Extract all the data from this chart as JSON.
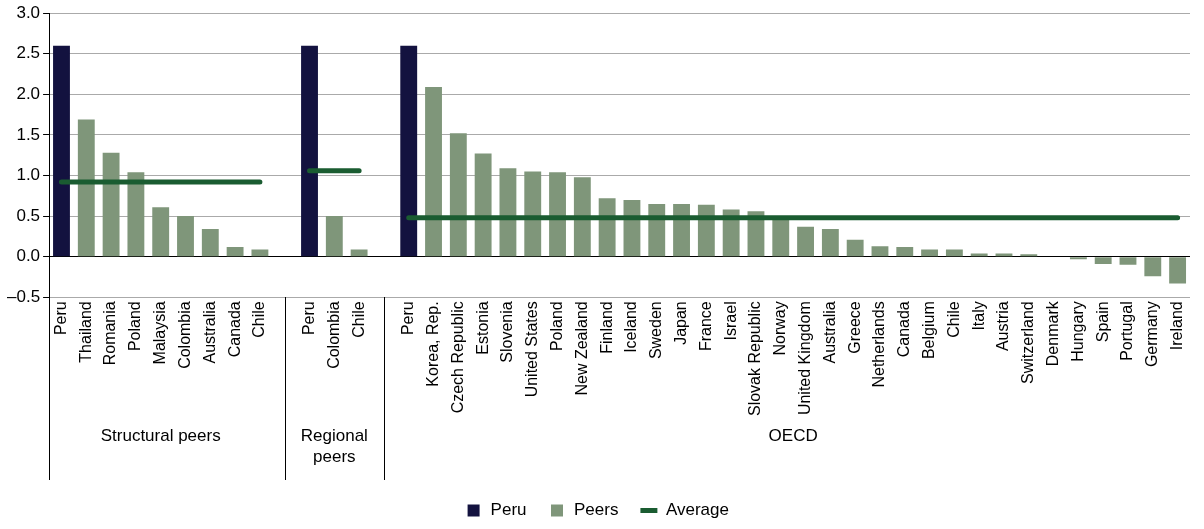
{
  "chart_data": {
    "type": "bar",
    "categories": [
      "Peru",
      "Thailand",
      "Romania",
      "Poland",
      "Malaysia",
      "Colombia",
      "Australia",
      "Canada",
      "Chile",
      null,
      "Peru",
      "Colombia",
      "Chile",
      null,
      "Peru",
      "Korea, Rep.",
      "Czech Republic",
      "Estonia",
      "Slovenia",
      "United States",
      "Poland",
      "New Zealand",
      "Finland",
      "Iceland",
      "Sweden",
      "Japan",
      "France",
      "Israel",
      "Slovak Republic",
      "Norway",
      "United Kingdom",
      "Australia",
      "Greece",
      "Netherlands",
      "Canada",
      "Belgium",
      "Chile",
      "Italy",
      "Austria",
      "Switzerland",
      "Denmark",
      "Hungary",
      "Spain",
      "Portugal",
      "Germany",
      "Ireland"
    ],
    "series": [
      {
        "name": "Peru",
        "color": "#13123f",
        "values": [
          2.6,
          null,
          null,
          null,
          null,
          null,
          null,
          null,
          null,
          null,
          2.6,
          null,
          null,
          null,
          2.6,
          null,
          null,
          null,
          null,
          null,
          null,
          null,
          null,
          null,
          null,
          null,
          null,
          null,
          null,
          null,
          null,
          null,
          null,
          null,
          null,
          null,
          null,
          null,
          null,
          null,
          null,
          null,
          null,
          null,
          null,
          null
        ]
      },
      {
        "name": "Peers",
        "color": "#7f967a",
        "values": [
          null,
          1.69,
          1.28,
          1.04,
          0.61,
          0.5,
          0.34,
          0.12,
          0.09,
          null,
          null,
          0.5,
          0.09,
          null,
          null,
          2.09,
          1.52,
          1.27,
          1.09,
          1.05,
          1.04,
          0.98,
          0.72,
          0.7,
          0.65,
          0.65,
          0.64,
          0.58,
          0.56,
          0.49,
          0.37,
          0.34,
          0.21,
          0.13,
          0.12,
          0.09,
          0.09,
          0.04,
          0.04,
          0.03,
          0,
          -0.03,
          -0.09,
          -0.1,
          -0.24,
          -0.33
        ]
      },
      {
        "name": "Average",
        "type": "line",
        "color": "#1a5c31",
        "values": [
          0.92,
          0.92,
          0.92,
          0.92,
          0.92,
          0.92,
          0.92,
          0.92,
          0.92,
          null,
          1.06,
          1.06,
          1.06,
          null,
          0.48,
          0.48,
          0.48,
          0.48,
          0.48,
          0.48,
          0.48,
          0.48,
          0.48,
          0.48,
          0.48,
          0.48,
          0.48,
          0.48,
          0.48,
          0.48,
          0.48,
          0.48,
          0.48,
          0.48,
          0.48,
          0.48,
          0.48,
          0.48,
          0.48,
          0.48,
          0.48,
          0.48,
          0.48,
          0.48,
          0.48,
          0.48
        ]
      }
    ],
    "ylim": [
      -0.5,
      3.0
    ],
    "yticks": [
      {
        "value": -0.5,
        "label": "–0.5"
      },
      {
        "value": 0,
        "label": "0.0"
      },
      {
        "value": 0.5,
        "label": "0.5"
      },
      {
        "value": 1,
        "label": "1.0"
      },
      {
        "value": 1.5,
        "label": "1.5"
      },
      {
        "value": 2,
        "label": "2.0"
      },
      {
        "value": 2.5,
        "label": "2.5"
      },
      {
        "value": 3,
        "label": "3.0"
      }
    ],
    "grid": "y",
    "legend": "bottom",
    "annotations": [
      "Structural peers",
      "Regional peers",
      "OECD"
    ]
  }
}
